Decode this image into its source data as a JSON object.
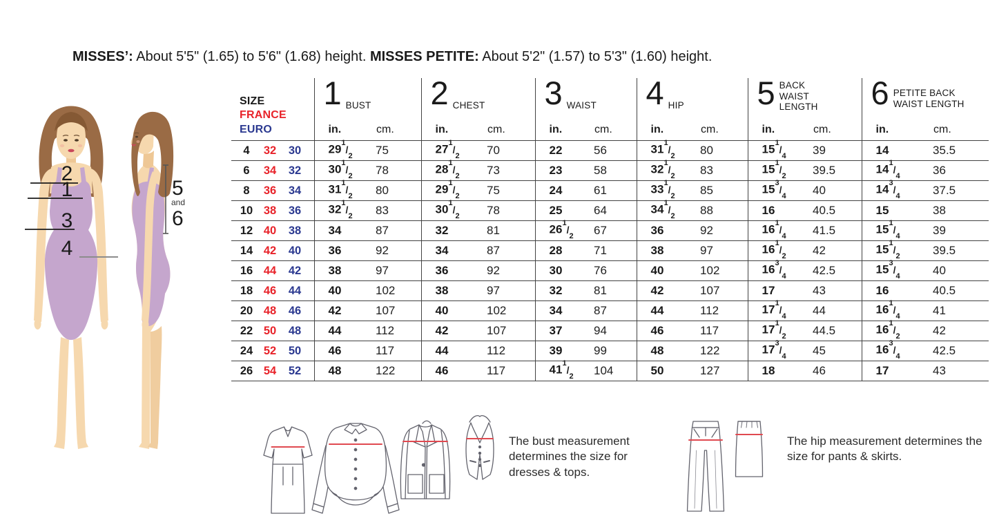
{
  "top_note": {
    "misses_label": "MISSES’:",
    "misses_text": " About 5'5\" (1.65) to 5'6\" (1.68) height. ",
    "petite_label": "MISSES PETITE:",
    "petite_text": " About 5'2\" (1.57) to 5'3\" (1.60) height."
  },
  "colors": {
    "france_red": "#e8232a",
    "euro_blue": "#2b3990",
    "measure_line_red": "#e04950",
    "leotard_lavender": "#c5a6cd",
    "hair_brown": "#9a6b45",
    "skin": "#f6d8ae"
  },
  "figure": {
    "marks": {
      "m2": "2",
      "m1": "1",
      "m3": "3",
      "m4": "4",
      "m5": "5",
      "m_and": "and",
      "m6": "6"
    }
  },
  "table": {
    "size_header": [
      "SIZE",
      "FRANCE",
      "EURO"
    ],
    "units": {
      "in": "in.",
      "cm": "cm."
    },
    "columns": [
      {
        "num": "1",
        "label_lines": [
          "BUST"
        ]
      },
      {
        "num": "2",
        "label_lines": [
          "CHEST"
        ]
      },
      {
        "num": "3",
        "label_lines": [
          "WAIST"
        ]
      },
      {
        "num": "4",
        "label_lines": [
          "HIP"
        ]
      },
      {
        "num": "5",
        "label_lines": [
          "BACK",
          "WAIST",
          "LENGTH"
        ]
      },
      {
        "num": "6",
        "label_lines": [
          "PETITE BACK",
          "WAIST LENGTH"
        ]
      }
    ],
    "rows": [
      [
        "4",
        "32",
        "30",
        "29 1/2",
        "75",
        "27 1/2",
        "70",
        "22",
        "56",
        "31 1/2",
        "80",
        "15 1/4",
        "39",
        "14",
        "35.5"
      ],
      [
        "6",
        "34",
        "32",
        "30 1/2",
        "78",
        "28 1/2",
        "73",
        "23",
        "58",
        "32 1/2",
        "83",
        "15 1/2",
        "39.5",
        "14 1/4",
        "36"
      ],
      [
        "8",
        "36",
        "34",
        "31 1/2",
        "80",
        "29 1/2",
        "75",
        "24",
        "61",
        "33 1/2",
        "85",
        "15 3/4",
        "40",
        "14 3/4",
        "37.5"
      ],
      [
        "10",
        "38",
        "36",
        "32 1/2",
        "83",
        "30 1/2",
        "78",
        "25",
        "64",
        "34 1/2",
        "88",
        "16",
        "40.5",
        "15",
        "38"
      ],
      [
        "12",
        "40",
        "38",
        "34",
        "87",
        "32",
        "81",
        "26 1/2",
        "67",
        "36",
        "92",
        "16 1/4",
        "41.5",
        "15 1/4",
        "39"
      ],
      [
        "14",
        "42",
        "40",
        "36",
        "92",
        "34",
        "87",
        "28",
        "71",
        "38",
        "97",
        "16 1/2",
        "42",
        "15 1/2",
        "39.5"
      ],
      [
        "16",
        "44",
        "42",
        "38",
        "97",
        "36",
        "92",
        "30",
        "76",
        "40",
        "102",
        "16 3/4",
        "42.5",
        "15 3/4",
        "40"
      ],
      [
        "18",
        "46",
        "44",
        "40",
        "102",
        "38",
        "97",
        "32",
        "81",
        "42",
        "107",
        "17",
        "43",
        "16",
        "40.5"
      ],
      [
        "20",
        "48",
        "46",
        "42",
        "107",
        "40",
        "102",
        "34",
        "87",
        "44",
        "112",
        "17 1/4",
        "44",
        "16 1/4",
        "41"
      ],
      [
        "22",
        "50",
        "48",
        "44",
        "112",
        "42",
        "107",
        "37",
        "94",
        "46",
        "117",
        "17 1/2",
        "44.5",
        "16 1/2",
        "42"
      ],
      [
        "24",
        "52",
        "50",
        "46",
        "117",
        "44",
        "112",
        "39",
        "99",
        "48",
        "122",
        "17 3/4",
        "45",
        "16 3/4",
        "42.5"
      ],
      [
        "26",
        "54",
        "52",
        "48",
        "122",
        "46",
        "117",
        "41 1/2",
        "104",
        "50",
        "127",
        "18",
        "46",
        "17",
        "43"
      ]
    ]
  },
  "captions": {
    "bust": "The bust measurement determines the size for dresses & tops.",
    "hip": "The hip measurement determines the size for pants & skirts."
  }
}
